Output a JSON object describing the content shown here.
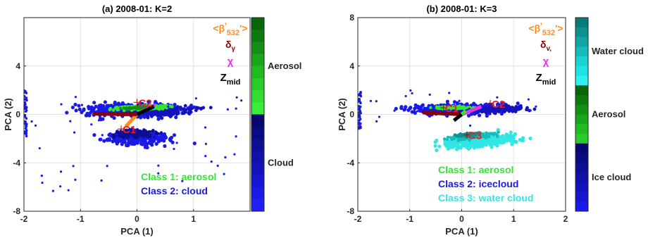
{
  "colors": {
    "cloud_blue": "#1a1ae6",
    "aerosol_green": "#33e633",
    "water_cyan": "#33e6e6",
    "c_label_red": "#e62020",
    "beta_orange": "#ff8c1a",
    "delta_darkred": "#8b0000",
    "chi_magenta": "#e633e6",
    "zmid_black": "#000000"
  },
  "chart_data": [
    {
      "type": "scatter",
      "title": "(a) 2008-01: K=2",
      "xlabel": "PCA (1)",
      "ylabel": "PCA (2)",
      "xlim": [
        -2,
        2
      ],
      "ylim": [
        -8,
        8
      ],
      "xticks": [
        "-2",
        "-1",
        "0",
        "1"
      ],
      "yticks": [
        "4",
        "0",
        "-4",
        "-8"
      ],
      "grid": true,
      "vector_legend": {
        "beta": {
          "main": "<β",
          "sup": "'",
          "sub": "532",
          "tail": "'>"
        },
        "delta": {
          "main": "δ",
          "sub": "γ"
        },
        "chi": {
          "main": "χ"
        },
        "zmid": {
          "main": "Z",
          "sub": "mid"
        }
      },
      "cluster_labels": [
        {
          "text": "C2",
          "x": 0.0,
          "y": 1.0
        },
        {
          "text": "C1",
          "x": -0.28,
          "y": -1.2
        }
      ],
      "legend": [
        {
          "text": "Class 1:  aerosol",
          "color": "#33e633"
        },
        {
          "text": "Class 2: cloud",
          "color": "#1a1ae6"
        }
      ],
      "colorbar": {
        "segments": [
          {
            "label": "Aerosol",
            "colors": [
              "#0a640a",
              "#0d7a0d",
              "#139013",
              "#19a619",
              "#20bb20",
              "#28cc28",
              "#30dd30",
              "#38ee38"
            ]
          },
          {
            "label": "Cloud",
            "colors": [
              "#07076e",
              "#0a0a82",
              "#0d0d96",
              "#1010aa",
              "#1313be",
              "#1616d2",
              "#1a1ae6",
              "#2020f5"
            ]
          }
        ]
      },
      "loadings": [
        {
          "name": "beta",
          "color": "#ff8c1a",
          "x": -0.2,
          "y": -1.0
        },
        {
          "name": "delta",
          "color": "#8b0000",
          "x": -0.78,
          "y": 0.05
        },
        {
          "name": "chi",
          "color": "#e633e6",
          "x": 0.32,
          "y": 0.8
        },
        {
          "name": "zmid",
          "color": "#000000",
          "x": 0.3,
          "y": 0.65
        }
      ]
    },
    {
      "type": "scatter",
      "title": "(b) 2008-01: K=3",
      "xlabel": "PCA (1)",
      "ylabel": "PCA (2)",
      "xlim": [
        -2,
        2
      ],
      "ylim": [
        -8,
        8
      ],
      "xticks": [
        "-2",
        "-1",
        "0",
        "1",
        "2"
      ],
      "yticks": [
        "8",
        "4",
        "0",
        "-4",
        "-8"
      ],
      "grid": true,
      "vector_legend": {
        "beta": {
          "main": "<β",
          "sup": "'",
          "sub": "532",
          "tail": "'>"
        },
        "delta": {
          "main": "δ",
          "sub": "v,"
        },
        "chi": {
          "main": "χ"
        },
        "zmid": {
          "main": "Z",
          "sub": "mid"
        }
      },
      "cluster_labels": [
        {
          "text": "C1",
          "x": -0.35,
          "y": 0.55
        },
        {
          "text": "C2",
          "x": 0.55,
          "y": 0.9
        },
        {
          "text": "C3",
          "x": 0.1,
          "y": -1.7
        }
      ],
      "legend": [
        {
          "text": "Class 1:  aerosol",
          "color": "#33e633"
        },
        {
          "text": "Class 2: icecloud",
          "color": "#1a1ae6"
        },
        {
          "text": "Class 3: water cloud",
          "color": "#33e6e6"
        }
      ],
      "colorbar": {
        "segments": [
          {
            "label": "Water cloud",
            "colors": [
              "#0a7a7a",
              "#0d9090",
              "#10a6a6",
              "#14bcbc",
              "#19d2d2",
              "#20e2e2",
              "#30f0f0"
            ]
          },
          {
            "label": "Aerosol",
            "colors": [
              "#0a640a",
              "#0d7a0d",
              "#139013",
              "#19a619",
              "#20bb20",
              "#28cc28"
            ]
          },
          {
            "label": "Ice cloud",
            "colors": [
              "#07076e",
              "#0a0a82",
              "#0d0d96",
              "#1010aa",
              "#1313be",
              "#1616d2",
              "#1a1ae6"
            ]
          }
        ]
      },
      "loadings": [
        {
          "name": "beta",
          "color": "#ff8c1a",
          "x": 0.05,
          "y": 0.1
        },
        {
          "name": "delta",
          "color": "#8b0000",
          "x": -0.75,
          "y": 0.15
        },
        {
          "name": "chi",
          "color": "#e633e6",
          "x": 0.38,
          "y": 0.65
        },
        {
          "name": "zmid",
          "color": "#000000",
          "x": -0.15,
          "y": -0.5
        },
        {
          "name": "green",
          "color": "#33e633",
          "x": 0.08,
          "y": 0.3
        }
      ]
    }
  ]
}
